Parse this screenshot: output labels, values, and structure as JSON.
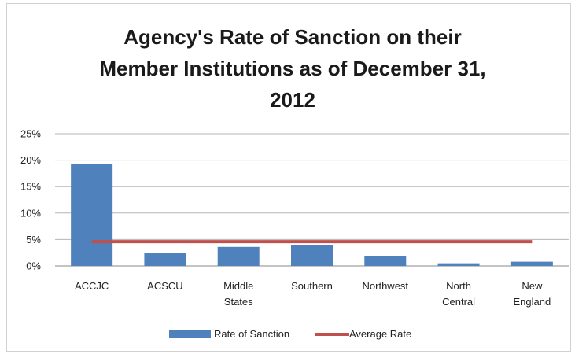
{
  "chart_data": {
    "type": "bar",
    "title_lines": [
      "Agency's Rate of Sanction on their",
      "Member Institutions as of December 31,",
      "2012"
    ],
    "categories": [
      [
        "ACCJC"
      ],
      [
        "ACSCU"
      ],
      [
        "Middle",
        "States"
      ],
      [
        "Southern"
      ],
      [
        "Northwest"
      ],
      [
        "North",
        "Central"
      ],
      [
        "New",
        "England"
      ]
    ],
    "series": [
      {
        "name": "Rate of Sanction",
        "type": "bar",
        "color": "#4F81BD",
        "values": [
          19.2,
          2.4,
          3.6,
          3.9,
          1.8,
          0.5,
          0.8
        ]
      },
      {
        "name": "Average Rate",
        "type": "line",
        "color": "#C0504D",
        "values": [
          4.6,
          4.6,
          4.6,
          4.6,
          4.6,
          4.6,
          4.6
        ]
      }
    ],
    "y_ticks": [
      "0%",
      "5%",
      "10%",
      "15%",
      "20%",
      "25%"
    ],
    "ylim": [
      0,
      25
    ],
    "y_unit": "%",
    "grid": true,
    "legend_position": "bottom"
  }
}
